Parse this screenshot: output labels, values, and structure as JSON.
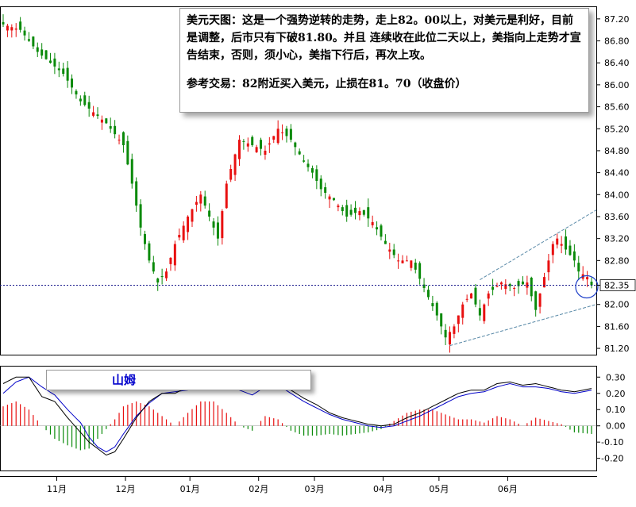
{
  "annotation": {
    "paragraph1": "美元天图：这是一个强势逆转的走势，走上82。00以上，对美元是利好，目前是调整，后市只有下破81.80。并且 连续收在此位二天以上，美指向上走势才宣告结束，否则，须小心，美指下行后，再次上攻。",
    "paragraph2": "参考交易：82附近买入美元，止损在81。70（收盘价）"
  },
  "watermark": "山姆",
  "colors": {
    "up": "#e81010",
    "down": "#0a8a0a",
    "macd_fast": "#000000",
    "macd_signal": "#0000c8",
    "current_line": "#1a1a8c",
    "trend_lines": "#5a8aa8",
    "circle": "#1a3cc8"
  },
  "chart_data": [
    {
      "type": "candlestick",
      "title": "",
      "current_price": "82.35",
      "y_ticks": [
        "87.20",
        "86.80",
        "86.40",
        "86.00",
        "85.60",
        "85.20",
        "84.80",
        "84.40",
        "84.00",
        "83.60",
        "83.20",
        "82.80",
        "82.35",
        "82.00",
        "81.60",
        "81.20"
      ],
      "x_labels": [
        "11月",
        "12月",
        "01月",
        "02月",
        "03月",
        "04月",
        "05月",
        "06月"
      ],
      "ylim": [
        81.1,
        87.4
      ],
      "anchors": [
        [
          0,
          87.1
        ],
        [
          4,
          87.0
        ],
        [
          8,
          86.6
        ],
        [
          14,
          86.2
        ],
        [
          18,
          85.7
        ],
        [
          24,
          85.3
        ],
        [
          28,
          84.9
        ],
        [
          30,
          84.2
        ],
        [
          32,
          83.4
        ],
        [
          34,
          82.8
        ],
        [
          36,
          82.4
        ],
        [
          38,
          82.6
        ],
        [
          40,
          83.1
        ],
        [
          43,
          83.6
        ],
        [
          46,
          84.0
        ],
        [
          48,
          83.6
        ],
        [
          50,
          83.2
        ],
        [
          52,
          84.2
        ],
        [
          55,
          85.0
        ],
        [
          58,
          84.9
        ],
        [
          61,
          84.8
        ],
        [
          64,
          85.2
        ],
        [
          67,
          85.0
        ],
        [
          70,
          84.6
        ],
        [
          72,
          84.4
        ],
        [
          74,
          84.1
        ],
        [
          77,
          83.9
        ],
        [
          80,
          83.6
        ],
        [
          83,
          83.7
        ],
        [
          86,
          83.5
        ],
        [
          89,
          83.1
        ],
        [
          92,
          82.8
        ],
        [
          95,
          82.8
        ],
        [
          98,
          82.3
        ],
        [
          101,
          81.8
        ],
        [
          103,
          81.4
        ],
        [
          105,
          81.6
        ],
        [
          107,
          82.0
        ],
        [
          109,
          82.2
        ],
        [
          111,
          81.8
        ],
        [
          113,
          82.2
        ],
        [
          116,
          82.4
        ],
        [
          119,
          82.3
        ],
        [
          122,
          82.4
        ],
        [
          124,
          81.9
        ],
        [
          126,
          82.5
        ],
        [
          128,
          83.1
        ],
        [
          129,
          83.2
        ],
        [
          131,
          83.0
        ],
        [
          133,
          82.8
        ],
        [
          134,
          82.6
        ],
        [
          136,
          82.5
        ],
        [
          137,
          82.35
        ]
      ],
      "macd": {
        "fast": [
          [
            0,
            0.26
          ],
          [
            3,
            0.3
          ],
          [
            6,
            0.3
          ],
          [
            9,
            0.18
          ],
          [
            12,
            0.15
          ],
          [
            15,
            0.05
          ],
          [
            18,
            -0.04
          ],
          [
            20,
            -0.1
          ],
          [
            22,
            -0.14
          ],
          [
            24,
            -0.18
          ],
          [
            26,
            -0.16
          ],
          [
            28,
            -0.08
          ],
          [
            31,
            0.05
          ],
          [
            34,
            0.15
          ],
          [
            37,
            0.2
          ],
          [
            40,
            0.2
          ],
          [
            43,
            0.24
          ],
          [
            46,
            0.3
          ],
          [
            49,
            0.33
          ],
          [
            52,
            0.3
          ],
          [
            55,
            0.26
          ],
          [
            58,
            0.22
          ],
          [
            61,
            0.29
          ],
          [
            64,
            0.28
          ],
          [
            67,
            0.22
          ],
          [
            70,
            0.17
          ],
          [
            73,
            0.13
          ],
          [
            76,
            0.08
          ],
          [
            79,
            0.05
          ],
          [
            82,
            0.03
          ],
          [
            85,
            0.01
          ],
          [
            88,
            0.0
          ],
          [
            91,
            0.01
          ],
          [
            94,
            0.05
          ],
          [
            97,
            0.08
          ],
          [
            100,
            0.12
          ],
          [
            103,
            0.16
          ],
          [
            106,
            0.2
          ],
          [
            109,
            0.22
          ],
          [
            112,
            0.22
          ],
          [
            115,
            0.26
          ],
          [
            118,
            0.27
          ],
          [
            121,
            0.25
          ],
          [
            124,
            0.26
          ],
          [
            127,
            0.24
          ],
          [
            130,
            0.22
          ],
          [
            133,
            0.21
          ],
          [
            137,
            0.23
          ]
        ],
        "signal": [
          [
            0,
            0.2
          ],
          [
            3,
            0.27
          ],
          [
            6,
            0.3
          ],
          [
            9,
            0.24
          ],
          [
            12,
            0.19
          ],
          [
            15,
            0.1
          ],
          [
            18,
            0.02
          ],
          [
            20,
            -0.07
          ],
          [
            22,
            -0.13
          ],
          [
            24,
            -0.16
          ],
          [
            26,
            -0.13
          ],
          [
            28,
            -0.05
          ],
          [
            31,
            0.06
          ],
          [
            34,
            0.14
          ],
          [
            37,
            0.2
          ],
          [
            40,
            0.21
          ],
          [
            43,
            0.22
          ],
          [
            46,
            0.26
          ],
          [
            49,
            0.28
          ],
          [
            52,
            0.26
          ],
          [
            55,
            0.22
          ],
          [
            58,
            0.19
          ],
          [
            61,
            0.24
          ],
          [
            64,
            0.25
          ],
          [
            67,
            0.2
          ],
          [
            70,
            0.15
          ],
          [
            73,
            0.11
          ],
          [
            76,
            0.07
          ],
          [
            79,
            0.04
          ],
          [
            82,
            0.02
          ],
          [
            85,
            0.0
          ],
          [
            88,
            -0.01
          ],
          [
            91,
            0.0
          ],
          [
            94,
            0.03
          ],
          [
            97,
            0.06
          ],
          [
            100,
            0.1
          ],
          [
            103,
            0.14
          ],
          [
            106,
            0.18
          ],
          [
            109,
            0.2
          ],
          [
            112,
            0.21
          ],
          [
            115,
            0.24
          ],
          [
            118,
            0.26
          ],
          [
            121,
            0.24
          ],
          [
            124,
            0.24
          ],
          [
            127,
            0.23
          ],
          [
            130,
            0.21
          ],
          [
            133,
            0.2
          ],
          [
            137,
            0.22
          ]
        ],
        "histogram_anchors": [
          [
            0,
            0.12
          ],
          [
            3,
            0.15
          ],
          [
            6,
            0.1
          ],
          [
            9,
            0.0
          ],
          [
            12,
            -0.08
          ],
          [
            15,
            -0.12
          ],
          [
            18,
            -0.15
          ],
          [
            20,
            -0.14
          ],
          [
            22,
            -0.08
          ],
          [
            24,
            -0.02
          ],
          [
            26,
            0.04
          ],
          [
            28,
            0.12
          ],
          [
            31,
            0.15
          ],
          [
            34,
            0.12
          ],
          [
            37,
            0.06
          ],
          [
            40,
            0.0
          ],
          [
            43,
            0.08
          ],
          [
            46,
            0.15
          ],
          [
            49,
            0.15
          ],
          [
            52,
            0.08
          ],
          [
            55,
            0.0
          ],
          [
            58,
            -0.03
          ],
          [
            61,
            0.06
          ],
          [
            64,
            0.04
          ],
          [
            67,
            -0.03
          ],
          [
            70,
            -0.06
          ],
          [
            73,
            -0.06
          ],
          [
            76,
            -0.05
          ],
          [
            79,
            -0.06
          ],
          [
            82,
            -0.05
          ],
          [
            85,
            -0.04
          ],
          [
            88,
            -0.02
          ],
          [
            91,
            0.03
          ],
          [
            94,
            0.08
          ],
          [
            97,
            0.1
          ],
          [
            100,
            0.1
          ],
          [
            103,
            0.07
          ],
          [
            106,
            0.04
          ],
          [
            109,
            0.04
          ],
          [
            112,
            0.02
          ],
          [
            115,
            0.06
          ],
          [
            118,
            0.04
          ],
          [
            121,
            0.0
          ],
          [
            124,
            0.05
          ],
          [
            127,
            0.03
          ],
          [
            130,
            0.01
          ],
          [
            133,
            -0.04
          ],
          [
            137,
            -0.05
          ]
        ],
        "y_ticks": [
          "0.30",
          "0.20",
          "0.10",
          "0.00",
          "-0.10",
          "-0.20"
        ],
        "ylim": [
          -0.27,
          0.36
        ]
      }
    }
  ]
}
